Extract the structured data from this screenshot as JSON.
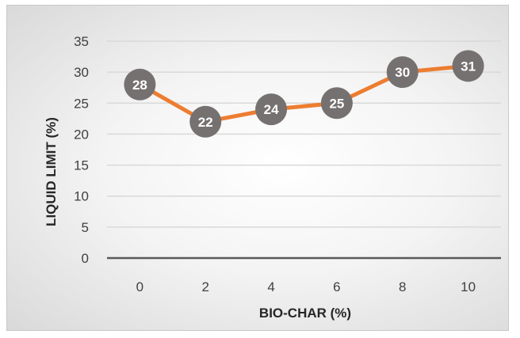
{
  "chart_data": {
    "type": "line",
    "x": [
      0,
      2,
      4,
      6,
      8,
      10
    ],
    "categories": [
      "0",
      "2",
      "4",
      "6",
      "8",
      "10"
    ],
    "series": [
      {
        "values": [
          28,
          22,
          24,
          25,
          30,
          31
        ]
      }
    ],
    "data_labels": [
      "28",
      "22",
      "24",
      "25",
      "30",
      "31"
    ],
    "xlabel": "BIO-CHAR (%)",
    "ylabel": "LIQUID LIMIT (%)",
    "ylim": [
      0,
      35
    ],
    "yticks": [
      "0",
      "5",
      "10",
      "15",
      "20",
      "25",
      "30",
      "35"
    ],
    "grid": true,
    "legend": "none",
    "colors": {
      "line": "#ed7d31",
      "marker": "#767171",
      "label_text": "#ffffff",
      "gridline": "#d9d9d9",
      "axis": "#595959"
    }
  }
}
